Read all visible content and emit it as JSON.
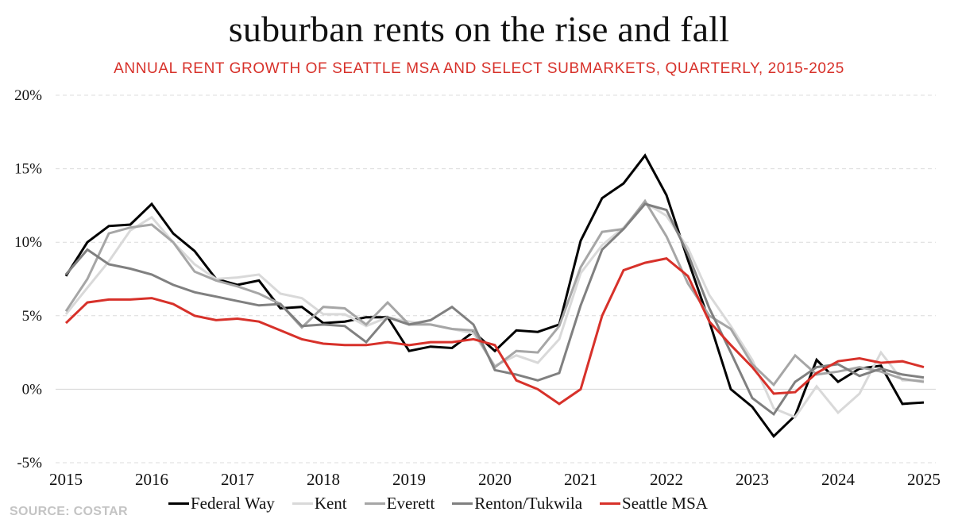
{
  "chart_data": {
    "type": "line",
    "title": "suburban rents on the rise and fall",
    "subtitle": "ANNUAL RENT GROWTH OF SEATTLE MSA AND SELECT SUBMARKETS, QUARTERLY, 2015-2025",
    "xlabel": "",
    "ylabel": "",
    "x_start_year": 2015,
    "x_points_per_year": 4,
    "x_ticks": [
      "2015",
      "2016",
      "2017",
      "2018",
      "2019",
      "2020",
      "2021",
      "2022",
      "2023",
      "2024",
      "2025"
    ],
    "y_ticks": [
      "20%",
      "15%",
      "10%",
      "5%",
      "0%",
      "-5%"
    ],
    "y_tick_values": [
      20,
      15,
      10,
      5,
      0,
      -5
    ],
    "ylim": [
      -5,
      20
    ],
    "grid": true,
    "legend_position": "bottom",
    "series": [
      {
        "name": "Federal Way",
        "color": "#000000",
        "values": [
          7.7,
          10.0,
          11.1,
          11.2,
          12.6,
          10.6,
          9.4,
          7.5,
          7.1,
          7.4,
          5.5,
          5.6,
          4.5,
          4.6,
          4.9,
          4.9,
          2.6,
          2.9,
          2.8,
          3.9,
          2.6,
          4.0,
          3.9,
          4.4,
          10.1,
          13.0,
          14.0,
          15.9,
          13.2,
          8.8,
          4.6,
          0.0,
          -1.2,
          -3.2,
          -1.8,
          2.0,
          0.5,
          1.4,
          1.6,
          -1.0,
          -0.9
        ]
      },
      {
        "name": "Kent",
        "color": "#d9d9d9",
        "values": [
          5.1,
          6.9,
          8.7,
          10.8,
          11.7,
          10.0,
          8.5,
          7.5,
          7.6,
          7.8,
          6.5,
          6.2,
          5.1,
          5.1,
          4.3,
          4.9,
          4.6,
          4.4,
          4.1,
          3.8,
          1.6,
          2.3,
          1.8,
          3.4,
          7.9,
          9.8,
          11.0,
          12.7,
          11.8,
          9.6,
          6.4,
          4.3,
          2.0,
          -1.3,
          -1.9,
          0.2,
          -1.6,
          -0.3,
          2.5,
          0.6,
          0.6
        ]
      },
      {
        "name": "Everett",
        "color": "#a6a6a6",
        "values": [
          5.3,
          7.5,
          10.6,
          11.0,
          11.2,
          10.0,
          8.0,
          7.4,
          7.0,
          6.5,
          5.8,
          4.2,
          5.6,
          5.5,
          4.4,
          5.9,
          4.4,
          4.4,
          4.1,
          4.0,
          1.5,
          2.6,
          2.5,
          4.3,
          8.3,
          10.7,
          10.9,
          12.8,
          10.4,
          7.2,
          5.0,
          4.1,
          1.7,
          0.3,
          2.3,
          1.0,
          1.2,
          1.5,
          1.2,
          0.7,
          0.5
        ]
      },
      {
        "name": "Renton/Tukwila",
        "color": "#808080",
        "values": [
          7.8,
          9.5,
          8.5,
          8.2,
          7.8,
          7.1,
          6.6,
          6.3,
          6.0,
          5.7,
          5.8,
          4.3,
          4.4,
          4.3,
          3.2,
          4.9,
          4.4,
          4.7,
          5.6,
          4.4,
          1.3,
          1.0,
          0.6,
          1.1,
          5.7,
          9.5,
          10.9,
          12.6,
          12.2,
          9.2,
          5.5,
          2.5,
          -0.6,
          -1.7,
          0.5,
          1.5,
          1.7,
          0.9,
          1.4,
          1.0,
          0.8
        ]
      },
      {
        "name": "Seattle MSA",
        "color": "#d7312a",
        "values": [
          4.5,
          5.9,
          6.1,
          6.1,
          6.2,
          5.8,
          5.0,
          4.7,
          4.8,
          4.6,
          4.0,
          3.4,
          3.1,
          3.0,
          3.0,
          3.2,
          3.0,
          3.2,
          3.2,
          3.4,
          3.0,
          0.6,
          0.0,
          -1.0,
          0.0,
          5.0,
          8.1,
          8.6,
          8.9,
          7.7,
          4.6,
          3.0,
          1.5,
          -0.3,
          -0.2,
          1.1,
          1.9,
          2.1,
          1.8,
          1.9,
          1.5
        ]
      }
    ]
  },
  "header": {
    "title": "suburban rents on the rise and fall",
    "subtitle": "ANNUAL RENT GROWTH OF SEATTLE MSA AND SELECT SUBMARKETS, QUARTERLY, 2015-2025"
  },
  "footer": {
    "source": "SOURCE: COSTAR"
  },
  "legend": [
    {
      "label": "Federal Way",
      "color": "#000000"
    },
    {
      "label": "Kent",
      "color": "#d9d9d9"
    },
    {
      "label": "Everett",
      "color": "#a6a6a6"
    },
    {
      "label": "Renton/Tukwila",
      "color": "#808080"
    },
    {
      "label": "Seattle MSA",
      "color": "#d7312a"
    }
  ]
}
